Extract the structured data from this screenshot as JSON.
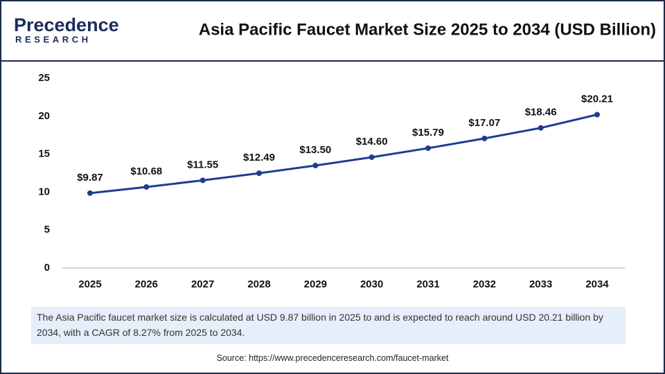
{
  "logo": {
    "name": "Precedence",
    "tagline": "RESEARCH"
  },
  "chart_data": {
    "type": "line",
    "title": "Asia Pacific Faucet Market Size 2025 to 2034 (USD Billion)",
    "categories": [
      "2025",
      "2026",
      "2027",
      "2028",
      "2029",
      "2030",
      "2031",
      "2032",
      "2033",
      "2034"
    ],
    "values": [
      9.87,
      10.68,
      11.55,
      12.49,
      13.5,
      14.6,
      15.79,
      17.07,
      18.46,
      20.21
    ],
    "value_labels": [
      "$9.87",
      "$10.68",
      "$11.55",
      "$12.49",
      "$13.50",
      "$14.60",
      "$15.79",
      "$17.07",
      "$18.46",
      "$20.21"
    ],
    "color": "#1f3c93",
    "ylim": [
      0,
      25
    ],
    "yticks": [
      0,
      5,
      10,
      15,
      20,
      25
    ],
    "grid": false,
    "caption": "The Asia Pacific faucet market size is calculated at USD 9.87 billion in 2025 to and is expected to reach around USD 20.21 billion by 2034, with a CAGR of 8.27% from 2025 to 2034.",
    "source": "Source: https://www.precedenceresearch.com/faucet-market"
  }
}
